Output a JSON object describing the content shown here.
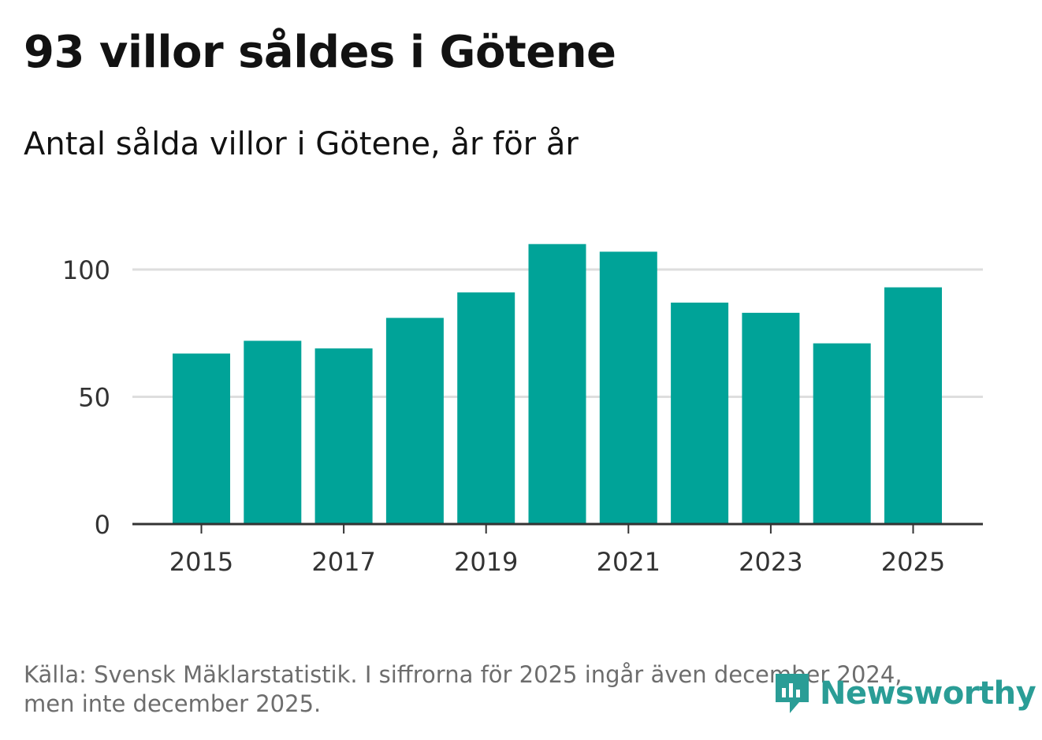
{
  "header": {
    "title": "93 villor såldes i Götene",
    "subtitle": "Antal sålda villor i Götene, år för år"
  },
  "chart_data": {
    "type": "bar",
    "categories": [
      "2015",
      "2016",
      "2017",
      "2018",
      "2019",
      "2020",
      "2021",
      "2022",
      "2023",
      "2024",
      "2025"
    ],
    "values": [
      67,
      72,
      69,
      81,
      91,
      110,
      107,
      87,
      83,
      71,
      93
    ],
    "x_tick_labels": [
      "2015",
      "2017",
      "2019",
      "2021",
      "2023",
      "2025"
    ],
    "y_ticks": [
      0,
      50,
      100
    ],
    "ylim": [
      0,
      120
    ],
    "grid": true,
    "bar_color": "#00a398",
    "xlabel": "",
    "ylabel": ""
  },
  "footer": {
    "source_line1": "Källa: Svensk Mäklarstatistik. I siffrorna för 2025 ingår även december 2024,",
    "source_line2": "men inte december 2025.",
    "logo_text": "Newsworthy",
    "logo_icon": "newsworthy-logo-icon",
    "logo_color": "#2a9d96"
  }
}
